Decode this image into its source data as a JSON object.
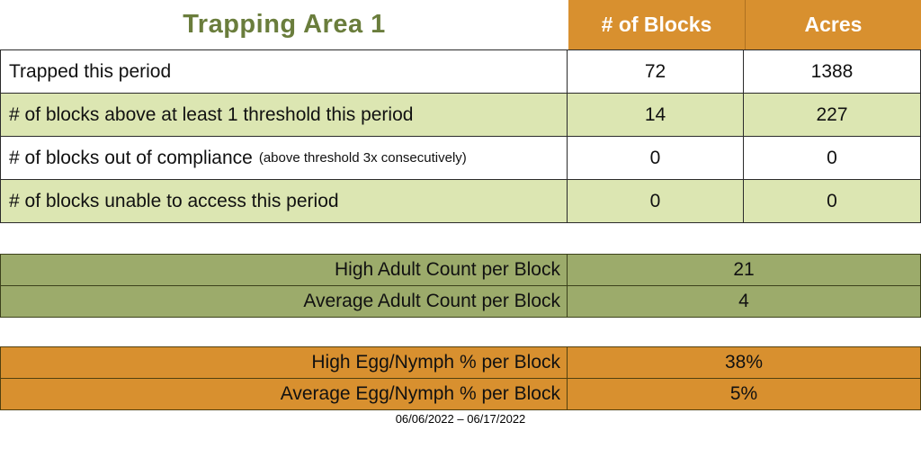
{
  "title": "Trapping Area 1",
  "header": {
    "col_blocks": "# of Blocks",
    "col_acres": "Acres"
  },
  "main_table": {
    "rows": [
      {
        "label": "Trapped this period",
        "note": "",
        "blocks": "72",
        "acres": "1388"
      },
      {
        "label": "# of blocks above at least 1 threshold this period",
        "note": "",
        "blocks": "14",
        "acres": "227"
      },
      {
        "label": "# of blocks out of compliance",
        "note": "(above threshold 3x consecutively)",
        "blocks": "0",
        "acres": "0"
      },
      {
        "label": "# of blocks unable to access this period",
        "note": "",
        "blocks": "0",
        "acres": "0"
      }
    ]
  },
  "adult_section": {
    "rows": [
      {
        "label": "High Adult Count per Block",
        "value": "21"
      },
      {
        "label": "Average Adult Count per Block",
        "value": "4"
      }
    ]
  },
  "egg_section": {
    "rows": [
      {
        "label": "High Egg/Nymph % per Block",
        "value": "38%"
      },
      {
        "label": "Average Egg/Nymph % per Block",
        "value": "5%"
      }
    ]
  },
  "footer": {
    "date_range": "06/06/2022 – 06/17/2022"
  },
  "colors": {
    "orange": "#d8902f",
    "light_green": "#dce6b2",
    "olive": "#9cab6b",
    "title_green": "#6a7d3c"
  }
}
